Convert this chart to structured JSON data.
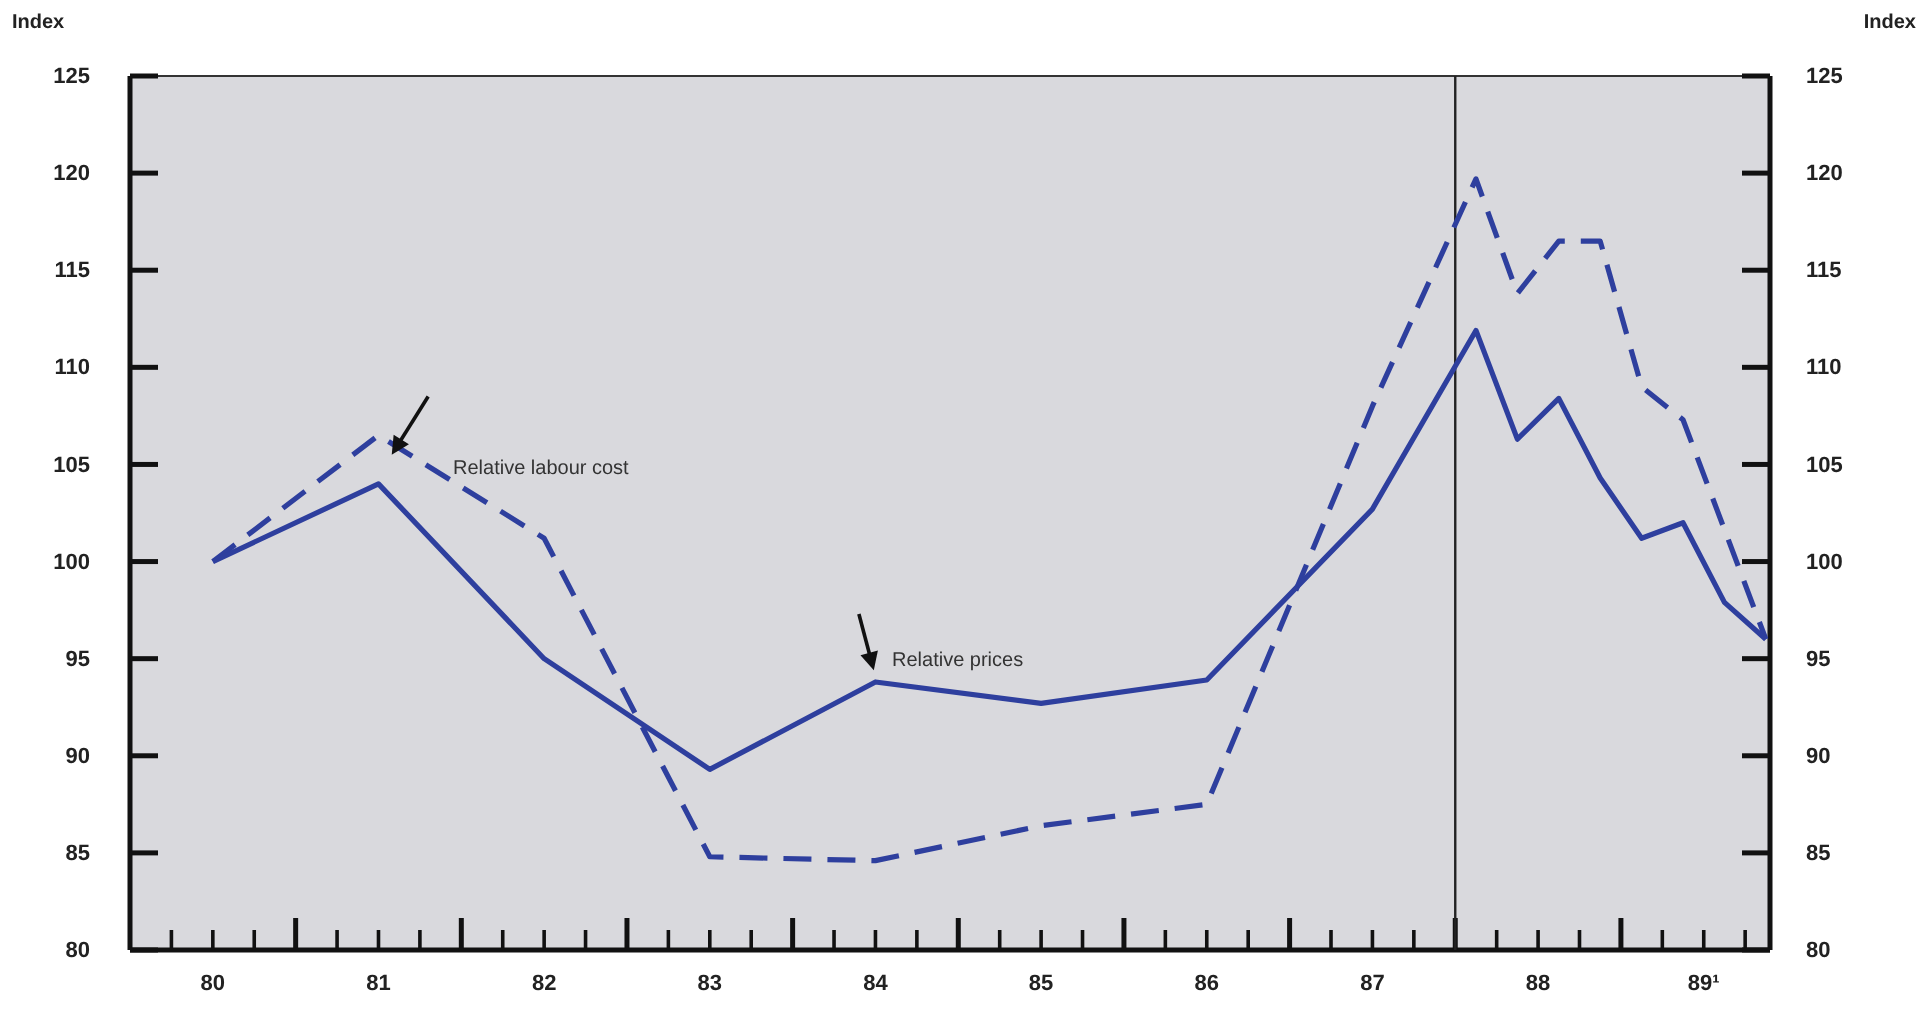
{
  "chart_data": {
    "type": "line",
    "ylabel": "Index",
    "y2label": "Index",
    "xlim": [
      79.5,
      89.4
    ],
    "xticks": [
      {
        "value": 79.75,
        "label": null
      },
      80,
      {
        "value": 80.25,
        "label": null
      },
      {
        "value": 80.5,
        "label": null
      },
      {
        "value": 80.75,
        "label": null
      },
      81,
      {
        "value": 81.25,
        "label": null
      },
      {
        "value": 81.5,
        "label": null
      },
      {
        "value": 81.75,
        "label": null
      },
      82,
      {
        "value": 82.25,
        "label": null
      },
      {
        "value": 82.5,
        "label": null
      },
      {
        "value": 82.75,
        "label": null
      },
      83,
      {
        "value": 83.25,
        "label": null
      },
      {
        "value": 83.5,
        "label": null
      },
      {
        "value": 83.75,
        "label": null
      },
      84,
      {
        "value": 84.25,
        "label": null
      },
      {
        "value": 84.5,
        "label": null
      },
      {
        "value": 84.75,
        "label": null
      },
      85,
      {
        "value": 85.25,
        "label": null
      },
      {
        "value": 85.5,
        "label": null
      },
      {
        "value": 85.75,
        "label": null
      },
      86,
      {
        "value": 86.25,
        "label": null
      },
      {
        "value": 86.5,
        "label": null
      },
      {
        "value": 86.75,
        "label": null
      },
      87,
      {
        "value": 87.25,
        "label": null
      },
      {
        "value": 87.5,
        "label": null
      },
      {
        "value": 87.75,
        "label": null
      },
      88,
      {
        "value": 88.25,
        "label": null
      },
      {
        "value": 88.5,
        "label": null
      },
      {
        "value": 88.75,
        "label": null
      },
      {
        "value": 89,
        "label": "89¹"
      },
      {
        "value": 89.25,
        "label": null
      }
    ],
    "ylim": [
      80,
      125
    ],
    "yticks": [
      80,
      85,
      90,
      95,
      100,
      105,
      110,
      115,
      120,
      125
    ],
    "y2lim": [
      80,
      125
    ],
    "y2ticks": [
      80,
      85,
      90,
      95,
      100,
      105,
      110,
      115,
      120,
      125
    ],
    "series": [
      {
        "name": "Relative labour cost",
        "color": "#2e3f9e",
        "line_style": "dashed",
        "x": [
          80,
          81,
          82,
          83,
          84,
          85,
          86,
          87,
          87.625,
          87.875,
          88.125,
          88.375,
          88.625,
          88.875,
          89.375
        ],
        "values": [
          100,
          106.5,
          101.2,
          84.8,
          84.6,
          86.4,
          87.5,
          108,
          119.7,
          113.8,
          116.5,
          116.5,
          109,
          107.3,
          96
        ]
      },
      {
        "name": "Relative prices",
        "color": "#2e3f9e",
        "line_style": "solid",
        "x": [
          80,
          81,
          82,
          83,
          84,
          85,
          86,
          87,
          87.625,
          87.875,
          88.125,
          88.375,
          88.625,
          88.875,
          89.125,
          89.375
        ],
        "values": [
          100,
          104,
          95,
          89.3,
          93.8,
          92.7,
          93.9,
          102.7,
          111.9,
          106.3,
          108.4,
          104.3,
          101.2,
          102,
          97.9,
          96
        ]
      }
    ],
    "ref_lines": [
      {
        "axis": "x",
        "value": 87.5,
        "color": "#222222",
        "line_style": "solid"
      }
    ],
    "grid": false,
    "legend": false,
    "marker": "none"
  }
}
